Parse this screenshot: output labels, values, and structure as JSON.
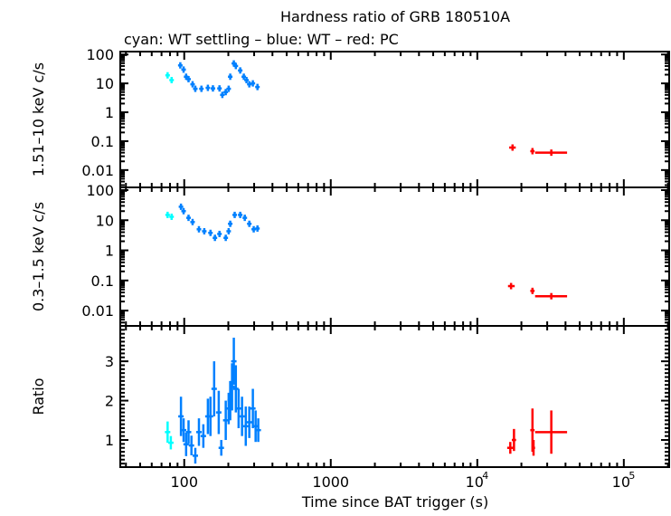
{
  "chart_data": {
    "type": "scatter",
    "title": "Hardness ratio of GRB 180510A",
    "subtitle": "cyan: WT settling – blue: WT – red: PC",
    "xlabel": "Time since BAT trigger (s)",
    "xscale": "log",
    "xlim": [
      36.6,
      204000
    ],
    "x_ticks": [
      {
        "v": 100,
        "label": "100"
      },
      {
        "v": 1000,
        "label": "1000"
      },
      {
        "v": 10000,
        "label": "10",
        "sup": "4"
      },
      {
        "v": 100000,
        "label": "10",
        "sup": "5"
      }
    ],
    "colors": {
      "wt_settling": "#00ffff",
      "wt": "#0080ff",
      "pc": "#ff0000"
    },
    "panels": [
      {
        "id": "hard",
        "ylabel": "1.51–10 keV c/s",
        "yscale": "log",
        "ylim": [
          0.00251,
          126
        ],
        "ticks": [
          {
            "v": 100,
            "label": "100"
          },
          {
            "v": 10,
            "label": "10"
          },
          {
            "v": 1,
            "label": "1"
          },
          {
            "v": 0.1,
            "label": "0.1"
          },
          {
            "v": 0.01,
            "label": "0.01"
          }
        ],
        "series": [
          {
            "name": "WT settling",
            "color": "#00ffff",
            "points": [
              [
                77,
                19
              ],
              [
                82,
                13
              ]
            ]
          },
          {
            "name": "WT",
            "color": "#0080ff",
            "points": [
              [
                94,
                42
              ],
              [
                99,
                30
              ],
              [
                103,
                17
              ],
              [
                107,
                14
              ],
              [
                114,
                9.3
              ],
              [
                119,
                6.5
              ],
              [
                131,
                6.5
              ],
              [
                145,
                7
              ],
              [
                157,
                6.7
              ],
              [
                174,
                6.7
              ],
              [
                182,
                4
              ],
              [
                192,
                5
              ],
              [
                201,
                6.5
              ],
              [
                206,
                17
              ],
              [
                218,
                49
              ],
              [
                225,
                40
              ],
              [
                241,
                28
              ],
              [
                255,
                17
              ],
              [
                266,
                13
              ],
              [
                278,
                9.3
              ],
              [
                294,
                10
              ],
              [
                316,
                7.5
              ]
            ]
          },
          {
            "name": "PC",
            "color": "#ff0000",
            "points": [
              [
                17400,
                0.06,
                16500,
                18300
              ],
              [
                23800,
                0.045,
                23000,
                24600
              ],
              [
                32000,
                0.04,
                24800,
                41000
              ]
            ]
          }
        ]
      },
      {
        "id": "soft",
        "ylabel": "0.3–1.5 keV c/s",
        "yscale": "log",
        "ylim": [
          0.0031,
          123
        ],
        "ticks": [
          {
            "v": 100,
            "label": "100"
          },
          {
            "v": 10,
            "label": "10"
          },
          {
            "v": 1,
            "label": "1"
          },
          {
            "v": 0.1,
            "label": "0.1"
          },
          {
            "v": 0.01,
            "label": "0.01"
          }
        ],
        "series": [
          {
            "name": "WT settling",
            "color": "#00ffff",
            "points": [
              [
                77,
                15
              ],
              [
                82,
                13
              ]
            ]
          },
          {
            "name": "WT",
            "color": "#0080ff",
            "points": [
              [
                95,
                28
              ],
              [
                99,
                20
              ],
              [
                107,
                12
              ],
              [
                114,
                8.7
              ],
              [
                126,
                5
              ],
              [
                137,
                4.3
              ],
              [
                151,
                3.8
              ],
              [
                162,
                2.6
              ],
              [
                174,
                3.5
              ],
              [
                192,
                2.6
              ],
              [
                201,
                4.3
              ],
              [
                206,
                7.6
              ],
              [
                221,
                15
              ],
              [
                241,
                15
              ],
              [
                259,
                12
              ],
              [
                278,
                7.6
              ],
              [
                298,
                5
              ],
              [
                316,
                5.3
              ]
            ]
          },
          {
            "name": "PC",
            "color": "#ff0000",
            "points": [
              [
                17000,
                0.065,
                16200,
                18000
              ],
              [
                23800,
                0.045,
                23000,
                24600
              ],
              [
                32000,
                0.03,
                24800,
                41000
              ]
            ]
          }
        ]
      },
      {
        "id": "ratio",
        "ylabel": "Ratio",
        "yscale": "linear",
        "ylim": [
          0.31,
          3.9
        ],
        "ticks": [
          {
            "v": 1,
            "label": "1"
          },
          {
            "v": 2,
            "label": "2"
          },
          {
            "v": 3,
            "label": "3"
          }
        ],
        "series": [
          {
            "name": "WT settling",
            "color": "#00ffff",
            "points": [
              [
                77,
                1.2,
                0.27
              ],
              [
                81,
                0.93,
                0.17
              ]
            ]
          },
          {
            "name": "WT",
            "color": "#0080ff",
            "points": [
              [
                95,
                1.6,
                0.5
              ],
              [
                99,
                1.25,
                0.3
              ],
              [
                103,
                0.89,
                0.3
              ],
              [
                107,
                1.2,
                0.3
              ],
              [
                112,
                0.86,
                0.25
              ],
              [
                119,
                0.6,
                0.2
              ],
              [
                126,
                1.2,
                0.35
              ],
              [
                135,
                1.1,
                0.3
              ],
              [
                145,
                1.6,
                0.45
              ],
              [
                151,
                1.6,
                0.5
              ],
              [
                160,
                2.3,
                0.7
              ],
              [
                172,
                1.7,
                0.55
              ],
              [
                179,
                0.8,
                0.2
              ],
              [
                192,
                1.5,
                0.5
              ],
              [
                201,
                1.8,
                0.4
              ],
              [
                206,
                2.0,
                0.5
              ],
              [
                212,
                2.35,
                0.6
              ],
              [
                218,
                3.0,
                0.6
              ],
              [
                225,
                2.3,
                0.6
              ],
              [
                235,
                1.8,
                0.5
              ],
              [
                248,
                1.6,
                0.5
              ],
              [
                263,
                1.35,
                0.5
              ],
              [
                278,
                1.45,
                0.4
              ],
              [
                294,
                1.8,
                0.5
              ],
              [
                307,
                1.35,
                0.4
              ],
              [
                320,
                1.25,
                0.3
              ]
            ]
          },
          {
            "name": "PC",
            "color": "#ff0000",
            "points": [
              [
                16800,
                0.8,
                0.15,
                16000,
                17600
              ],
              [
                17800,
                1.0,
                0.28,
                17200,
                18400
              ],
              [
                23800,
                1.25,
                0.55,
                23000,
                24600
              ],
              [
                24200,
                0.8,
                0.2,
                23600,
                24800
              ],
              [
                32000,
                1.2,
                0.55,
                24800,
                41000
              ]
            ]
          }
        ]
      }
    ]
  }
}
